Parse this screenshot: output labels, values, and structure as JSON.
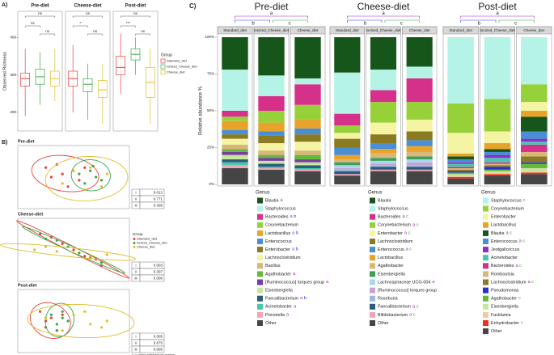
{
  "panel_labels": [
    "A)",
    "B)",
    "C)"
  ],
  "group_legend": {
    "title": "Group",
    "names": [
      "Standard_diet",
      "Ionized_Cheese_diet",
      "Cheese_diet"
    ],
    "colors": [
      "#e8413c",
      "#3aa64a",
      "#e0bd2c"
    ]
  },
  "chart_data": [
    {
      "type": "box",
      "title": "Pre-diet",
      "ylabel": "Observed Richness",
      "ylim": [
        150,
        470
      ],
      "yticks": [
        200,
        300,
        400
      ],
      "boxes": [
        {
          "low": 190,
          "q1": 270,
          "median": 290,
          "q3": 305,
          "high": 370
        },
        {
          "low": 220,
          "q1": 275,
          "median": 295,
          "q3": 315,
          "high": 360
        },
        {
          "low": 230,
          "q1": 270,
          "median": 290,
          "q3": 310,
          "high": 370
        }
      ],
      "significance": [
        "ns",
        "ns",
        "ns"
      ]
    },
    {
      "type": "box",
      "title": "Cheese-diet",
      "ylim": [
        150,
        470
      ],
      "boxes": [
        {
          "low": 200,
          "q1": 270,
          "median": 290,
          "q3": 310,
          "high": 380
        },
        {
          "low": 180,
          "q1": 255,
          "median": 275,
          "q3": 290,
          "high": 330
        },
        {
          "low": 170,
          "q1": 240,
          "median": 260,
          "q3": 285,
          "high": 330
        }
      ],
      "significance": [
        "ns",
        "*",
        "ns"
      ]
    },
    {
      "type": "box",
      "title": "Post-diet",
      "ylim": [
        150,
        470
      ],
      "boxes": [
        {
          "low": 250,
          "q1": 300,
          "median": 320,
          "q3": 350,
          "high": 410
        },
        {
          "low": 300,
          "q1": 340,
          "median": 355,
          "q3": 370,
          "high": 400
        },
        {
          "low": 170,
          "q1": 240,
          "median": 280,
          "q3": 320,
          "high": 370
        }
      ],
      "significance": [
        "ns",
        "***",
        "ns"
      ]
    },
    {
      "type": "scatter",
      "title": "Pre-diet",
      "xlim": [
        -1,
        1
      ],
      "ylim": [
        -1,
        1
      ],
      "series": [
        {
          "color": "#e8413c",
          "x": [
            -0.5,
            -0.3,
            -0.2,
            0.0,
            0.1,
            -0.1,
            0.2,
            -0.4
          ],
          "y": [
            0.3,
            0.4,
            0.1,
            0.2,
            -0.1,
            -0.3,
            0.3,
            0.0
          ]
        },
        {
          "color": "#3aa64a",
          "x": [
            0.1,
            0.3,
            0.4,
            0.5,
            0.2,
            0.35
          ],
          "y": [
            0.1,
            0.2,
            0.0,
            -0.1,
            -0.2,
            0.35
          ]
        },
        {
          "color": "#e0bd2c",
          "x": [
            -0.2,
            0.2,
            0.5,
            0.6,
            0.3,
            0.0
          ],
          "y": [
            -0.2,
            -0.4,
            -0.3,
            0.1,
            0.3,
            0.2
          ]
        }
      ],
      "table": {
        "rows": [
          "i",
          "ii",
          "iii"
        ],
        "values": [
          0.012,
          0.771,
          0.305
        ]
      }
    },
    {
      "type": "scatter",
      "title": "Cheese-diet",
      "xlim": [
        -1,
        1
      ],
      "ylim": [
        -1,
        1
      ],
      "series": [
        {
          "color": "#e8413c",
          "x": [
            -0.6,
            -0.4,
            -0.2,
            0.0,
            0.2,
            0.4,
            0.5
          ],
          "y": [
            0.5,
            0.4,
            0.2,
            0.0,
            -0.2,
            -0.3,
            -0.5
          ]
        },
        {
          "color": "#3aa64a",
          "x": [
            -0.5,
            -0.3,
            -0.1,
            0.1,
            0.3,
            0.5
          ],
          "y": [
            0.35,
            0.3,
            0.1,
            -0.1,
            -0.25,
            -0.4
          ]
        },
        {
          "color": "#e0bd2c",
          "x": [
            -0.7,
            -0.3,
            0.0,
            0.3,
            0.6,
            -0.5
          ],
          "y": [
            0.0,
            -0.05,
            -0.1,
            -0.2,
            -0.15,
            0.1
          ]
        }
      ],
      "legend": {
        "title": "Group",
        "names": [
          "Standard_diet",
          "Ionized_Cheese_diet",
          "Cheese_diet"
        ]
      },
      "table": {
        "rows": [
          "i",
          "ii",
          "iii"
        ],
        "values": [
          0.003,
          0.307,
          0.006
        ]
      }
    },
    {
      "type": "scatter",
      "title": "Post-diet",
      "xlim": [
        -1,
        1
      ],
      "ylim": [
        -1,
        1
      ],
      "series": [
        {
          "color": "#e8413c",
          "x": [
            -0.6,
            -0.5,
            -0.4,
            -0.3,
            -0.5,
            -0.2
          ],
          "y": [
            0.3,
            -0.2,
            0.1,
            -0.3,
            0.0,
            0.2
          ]
        },
        {
          "color": "#3aa64a",
          "x": [
            -0.4,
            -0.3,
            -0.2,
            -0.1,
            -0.3,
            -0.2
          ],
          "y": [
            0.2,
            -0.1,
            0.3,
            0.0,
            -0.3,
            0.1
          ]
        },
        {
          "color": "#e0bd2c",
          "x": [
            -0.5,
            0.0,
            0.3,
            0.6,
            0.2,
            -0.2,
            0.5
          ],
          "y": [
            0.1,
            0.2,
            -0.1,
            0.0,
            0.3,
            -0.3,
            -0.2
          ]
        }
      ],
      "table": {
        "rows": [
          "i",
          "ii",
          "iii"
        ],
        "values": [
          0.005,
          0.675,
          0.005
        ]
      },
      "footnotes": [
        "i= p-value standard vs cheese",
        "ii= p-value standard vs ionized cheese",
        "iii= p-Value cheese vs ionized cheese"
      ]
    },
    {
      "type": "stacked-bar",
      "title": "Pre-diet",
      "ylabel": "Relative abundance %",
      "letters": [
        "a",
        "b",
        "c"
      ],
      "categories": [
        "Standard_diet",
        "Ionized_Cheese_diet",
        "Cheese_diet"
      ],
      "ylim": [
        0,
        100
      ],
      "yticks": [
        {
          "value": 0,
          "label": "0%"
        },
        {
          "value": 25,
          "label": "25%"
        },
        {
          "value": 50,
          "label": "50%"
        },
        {
          "value": 75,
          "label": "75%"
        },
        {
          "value": 100,
          "label": "100%"
        }
      ],
      "legend_title": "Genus",
      "series": [
        {
          "name": "Blautia",
          "color": "#17561a",
          "sig": "a",
          "values": [
            22,
            26,
            28
          ]
        },
        {
          "name": "Staphylococcus",
          "color": "#b4f3e6",
          "values": [
            28,
            14,
            4
          ]
        },
        {
          "name": "Bacteroides",
          "color": "#d6318a",
          "sig": "a b",
          "values": [
            4,
            10,
            14
          ]
        },
        {
          "name": "Corynebacterium",
          "color": "#97d13a",
          "values": [
            3,
            8,
            10
          ]
        },
        {
          "name": "Lactobacillus",
          "color": "#e8a42a",
          "sig": "a b",
          "values": [
            6,
            6,
            6
          ]
        },
        {
          "name": "Enterococcus",
          "color": "#4a8fd6",
          "values": [
            3,
            3,
            4
          ]
        },
        {
          "name": "Enterobacter",
          "color": "#8a7a22",
          "sig": "a b",
          "values": [
            3,
            5,
            5
          ]
        },
        {
          "name": "Lachnoclostridium",
          "color": "#f4f4a2",
          "values": [
            4,
            5,
            6
          ]
        },
        {
          "name": "Bacillus",
          "color": "#d9b67a",
          "values": [
            3,
            3,
            3
          ]
        },
        {
          "name": "Agathobacter",
          "color": "#63b93a",
          "sig": "a",
          "values": [
            2,
            2,
            3
          ]
        },
        {
          "name": "[Ruminococcus] torques group",
          "color": "#7a3c9e",
          "sig": "a",
          "values": [
            2,
            2,
            2
          ]
        },
        {
          "name": "Eisenbergiella",
          "color": "#c6e69c",
          "values": [
            3,
            2,
            2
          ]
        },
        {
          "name": "Faecalibacterium",
          "color": "#2c5b7c",
          "sig": "a b",
          "values": [
            2,
            2,
            2
          ]
        },
        {
          "name": "Acinetobacter",
          "color": "#47c7ae",
          "sig": "a",
          "values": [
            2,
            1,
            1
          ]
        },
        {
          "name": "Prevotella",
          "color": "#f2a5b6",
          "sig": "a",
          "values": [
            2,
            1,
            1
          ]
        },
        {
          "name": "Other",
          "color": "#454545",
          "values": [
            11,
            10,
            9
          ]
        }
      ]
    },
    {
      "type": "stacked-bar",
      "title": "Cheese-diet",
      "letters": [
        "a",
        "b",
        "c"
      ],
      "categories": [
        "Standard_diet",
        "Ionized_Cheese_diet",
        "Cheese_diet"
      ],
      "ylim": [
        0,
        100
      ],
      "legend_title": "Genus",
      "series": [
        {
          "name": "Blautia",
          "color": "#17561a",
          "values": [
            24,
            22,
            20
          ]
        },
        {
          "name": "Staphylococcus",
          "color": "#b4f3e6",
          "values": [
            28,
            14,
            8
          ]
        },
        {
          "name": "Bacteroides",
          "color": "#d6318a",
          "sig": "a c",
          "values": [
            8,
            8,
            16
          ]
        },
        {
          "name": "Corynebacterium",
          "color": "#97d13a",
          "sig": "a c",
          "values": [
            5,
            14,
            12
          ]
        },
        {
          "name": "Enterobacter",
          "color": "#f4f4a2",
          "sig": "a c",
          "values": [
            4,
            8,
            8
          ]
        },
        {
          "name": "Lachnoclostridium",
          "color": "#8a7a22",
          "values": [
            6,
            6,
            6
          ]
        },
        {
          "name": "Enterococcus",
          "color": "#4a8fd6",
          "sig": "a c",
          "values": [
            5,
            4,
            4
          ]
        },
        {
          "name": "Lactobacillus",
          "color": "#e8a42a",
          "values": [
            3,
            3,
            4
          ]
        },
        {
          "name": "Agathobacter",
          "color": "#d9b67a",
          "values": [
            2,
            3,
            3
          ]
        },
        {
          "name": "Eisenbergiella",
          "color": "#3f9e5a",
          "values": [
            2,
            2,
            2
          ]
        },
        {
          "name": "Lachnospiraceae UCG-004",
          "color": "#a8d8ef",
          "sig": "a",
          "values": [
            2,
            2,
            2
          ]
        },
        {
          "name": "[Ruminococcus] torques group",
          "color": "#c9a2d6",
          "values": [
            1,
            1,
            2
          ]
        },
        {
          "name": "Roseburia",
          "color": "#9db9dd",
          "values": [
            1,
            1,
            1
          ]
        },
        {
          "name": "Faecalibacterium",
          "color": "#2c5b7c",
          "sig": "a c",
          "values": [
            2,
            2,
            2
          ]
        },
        {
          "name": "Bifidobacterium",
          "color": "#f2a5b6",
          "sig": "a c",
          "values": [
            1,
            1,
            1
          ]
        },
        {
          "name": "Other",
          "color": "#454545",
          "values": [
            6,
            9,
            9
          ]
        }
      ]
    },
    {
      "type": "stacked-bar",
      "title": "Post-diet",
      "letters": [
        "a",
        "b",
        "c"
      ],
      "categories": [
        "Standard_diet",
        "Ionized_Cheese_diet",
        "Cheese_diet"
      ],
      "ylim": [
        0,
        100
      ],
      "legend_title": "Genus",
      "series": [
        {
          "name": "Staphylococcus",
          "color": "#b4f3e6",
          "sig": "c",
          "values": [
            45,
            42,
            32
          ]
        },
        {
          "name": "Corynebacterium",
          "color": "#97d13a",
          "values": [
            20,
            22,
            12
          ]
        },
        {
          "name": "Enterobacter",
          "color": "#f4f4a2",
          "values": [
            14,
            8,
            6
          ]
        },
        {
          "name": "Lactobacillus",
          "color": "#e8a42a",
          "values": [
            2,
            4,
            4
          ]
        },
        {
          "name": "Blautia",
          "color": "#17561a",
          "sig": "a c",
          "values": [
            2,
            2,
            10
          ]
        },
        {
          "name": "Enterococcus",
          "color": "#4a8fd6",
          "sig": "a c",
          "values": [
            2,
            2,
            5
          ]
        },
        {
          "name": "Jeotgalicoccus",
          "color": "#8b2fc9",
          "values": [
            1,
            2,
            2
          ]
        },
        {
          "name": "Acinetobacter",
          "color": "#47c7ae",
          "values": [
            2,
            3,
            2
          ]
        },
        {
          "name": "Bacteroides",
          "color": "#d6318a",
          "sig": "a c",
          "values": [
            1,
            1,
            5
          ]
        },
        {
          "name": "Romboutsia",
          "color": "#d9b67a",
          "values": [
            1,
            1,
            3
          ]
        },
        {
          "name": "Lachnoclostridium",
          "color": "#8a7a22",
          "sig": "a c",
          "values": [
            1,
            1,
            4
          ]
        },
        {
          "name": "Pseudomonas",
          "color": "#2832c8",
          "values": [
            1,
            2,
            1
          ]
        },
        {
          "name": "Agathobacter",
          "color": "#63b93a",
          "sig": "c",
          "values": [
            1,
            1,
            3
          ]
        },
        {
          "name": "Eisenbergiella",
          "color": "#c6e69c",
          "values": [
            1,
            1,
            2
          ]
        },
        {
          "name": "Facklamia",
          "color": "#f2c8a0",
          "values": [
            1,
            1,
            1
          ]
        },
        {
          "name": "Enhydrobacter",
          "color": "#e8301c",
          "sig": "c",
          "values": [
            1,
            1,
            1
          ]
        },
        {
          "name": "Other",
          "color": "#454545",
          "values": [
            4,
            6,
            7
          ]
        }
      ]
    }
  ]
}
